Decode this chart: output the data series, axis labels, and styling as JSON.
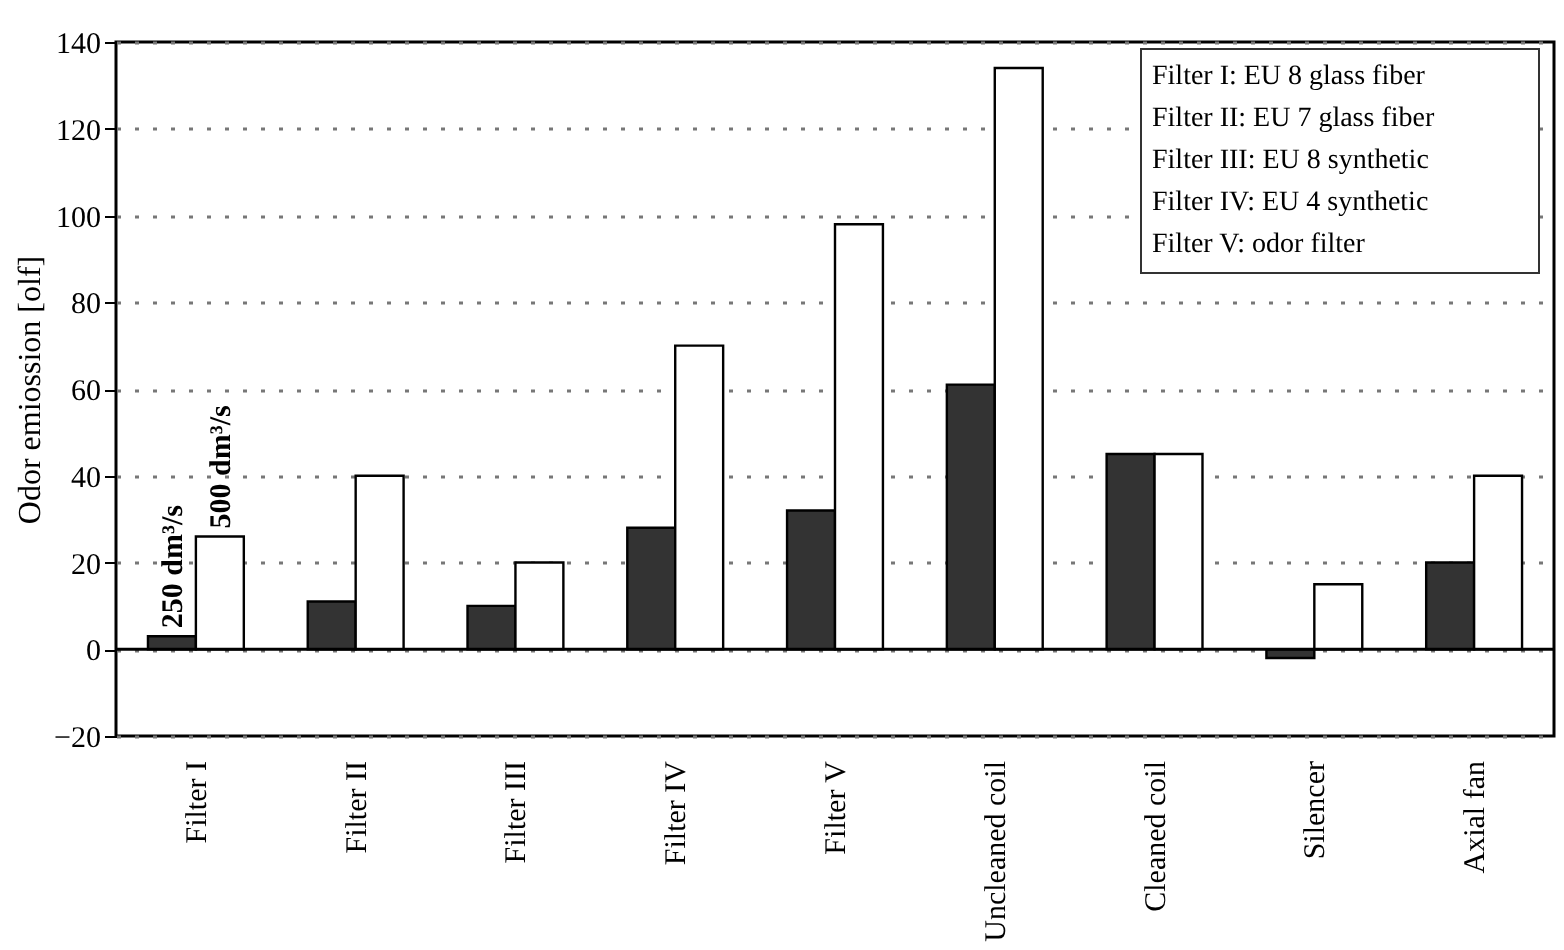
{
  "chart_data": {
    "type": "bar",
    "ylabel": "Odor emiossion [olf]",
    "categories": [
      "Filter I",
      "Filter II",
      "Filter III",
      "Filter IV",
      "Filter V",
      "Uncleaned coil",
      "Cleaned coil",
      "Silencer",
      "Axial fan"
    ],
    "series": [
      {
        "name": "250 dm³/s",
        "color": "#333333",
        "values": [
          3,
          11,
          10,
          28,
          32,
          61,
          45,
          -2,
          20
        ]
      },
      {
        "name": "500 dm³/s",
        "color": "#ffffff",
        "values": [
          26,
          40,
          20,
          70,
          98,
          134,
          45,
          15,
          40
        ]
      }
    ],
    "ylim": [
      -20,
      140
    ],
    "yticks": [
      -20,
      0,
      20,
      40,
      60,
      80,
      100,
      120,
      140
    ],
    "grid": "y",
    "legend": false,
    "ref_lines": [
      {
        "axis": "y",
        "value": 0,
        "color": "#000000"
      }
    ],
    "annotations": [
      "Filter I: EU 8 glass fiber",
      "Filter II: EU 7 glass fiber",
      "Filter III: EU 8 synthetic",
      "Filter IV: EU 4 synthetic",
      "Filter V: odor filter"
    ]
  }
}
